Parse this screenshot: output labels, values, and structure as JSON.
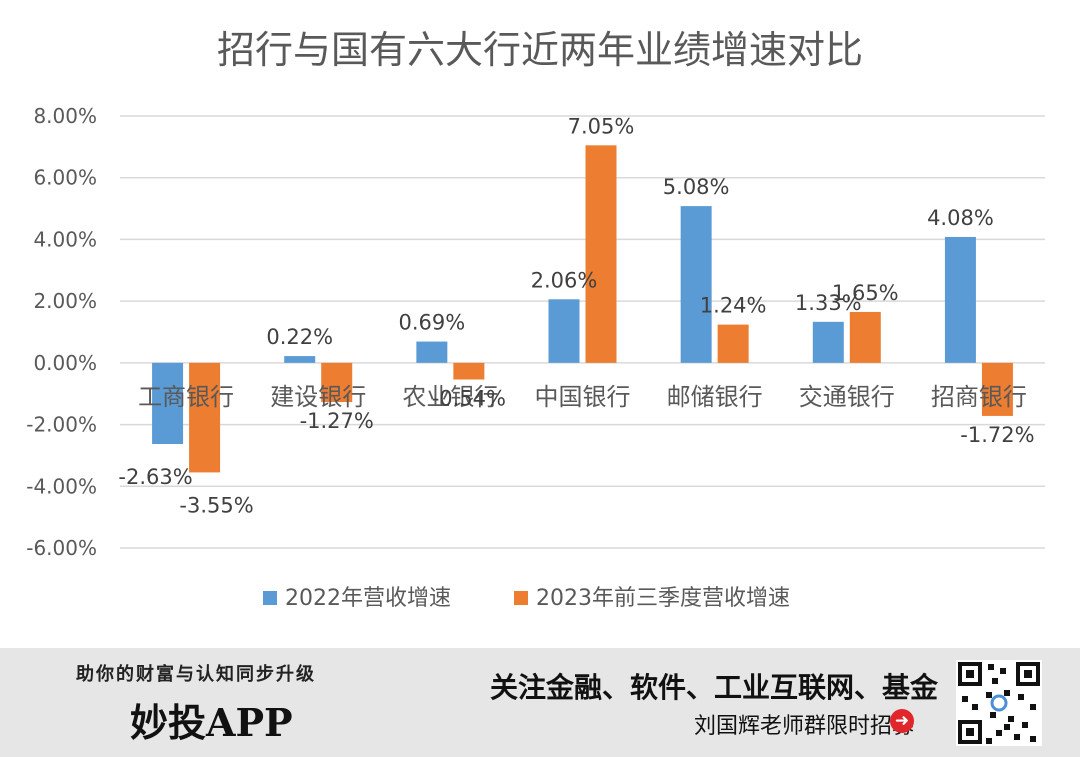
{
  "chart_data": {
    "type": "bar",
    "title": "招行与国有六大行近两年业绩增速对比",
    "categories": [
      "工商银行",
      "建设银行",
      "农业银行",
      "中国银行",
      "邮储银行",
      "交通银行",
      "招商银行"
    ],
    "series": [
      {
        "name": "2022年营收增速",
        "color": "#5b9bd5",
        "values": [
          -2.63,
          0.22,
          0.69,
          2.06,
          5.08,
          1.33,
          4.08
        ],
        "labels": [
          "-2.63%",
          "0.22%",
          "0.69%",
          "2.06%",
          "5.08%",
          "1.33%",
          "4.08%"
        ]
      },
      {
        "name": "2023年前三季度营收增速",
        "color": "#ed7d31",
        "values": [
          -3.55,
          -1.27,
          -0.54,
          7.05,
          1.24,
          1.65,
          -1.72
        ],
        "labels": [
          "-3.55%",
          "-1.27%",
          "-0.54%",
          "7.05%",
          "1.24%",
          "1.65%",
          "-1.72%"
        ]
      }
    ],
    "yticks": [
      "-6.00%",
      "-4.00%",
      "-2.00%",
      "0.00%",
      "2.00%",
      "4.00%",
      "6.00%",
      "8.00%"
    ],
    "ylim": [
      -6,
      8
    ],
    "grid": true,
    "legend": "bottom"
  },
  "banner": {
    "slogan": "助你的财富与认知同步升级",
    "brand": "妙投APP",
    "promo": "关注金融、软件、工业互联网、基金",
    "recruit": "刘国辉老师群限时招募",
    "arrow_icon": "arrow-right-circle-icon",
    "qr_icon": "qr-code-icon"
  }
}
